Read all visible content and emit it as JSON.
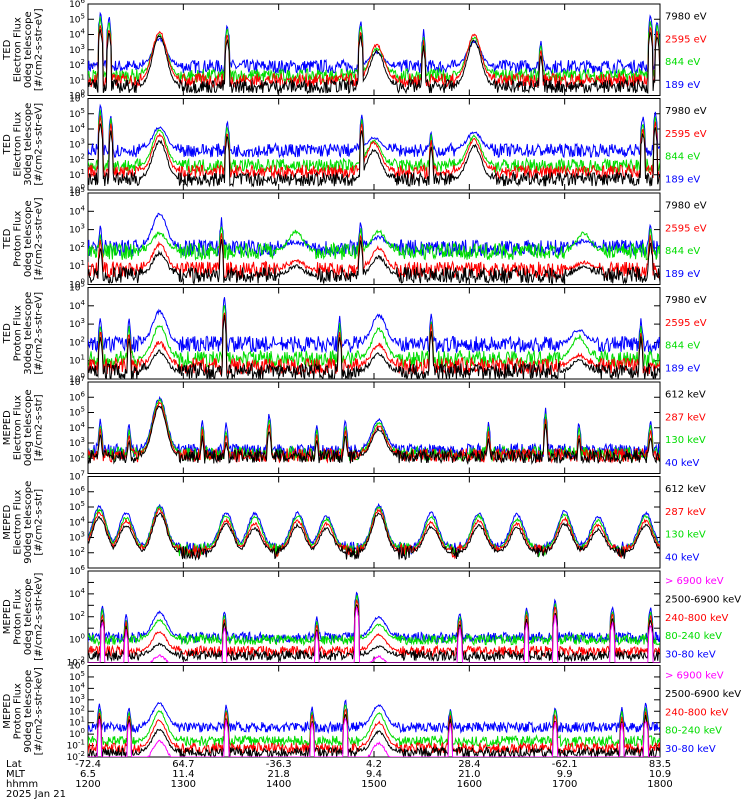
{
  "chart_data": [
    {
      "type": "line",
      "ylabel": [
        "TED",
        "Electron Flux",
        "0deg telescope",
        "[#/cm2-s-str-eV]"
      ],
      "ylim_exp": [
        0,
        6
      ],
      "ytick_exps": [
        0,
        1,
        2,
        3,
        4,
        5,
        6
      ],
      "legend": [
        {
          "label": "7980 eV",
          "color": "#000000"
        },
        {
          "label": "2595 eV",
          "color": "#ff0000"
        },
        {
          "label": "844 eV",
          "color": "#00dd00"
        },
        {
          "label": "189 eV",
          "color": "#0000ff"
        }
      ],
      "bg_levels": [
        0.6,
        1.0,
        1.3,
        1.9
      ],
      "bumps": [
        {
          "x": 1275,
          "peaks": [
            3.9,
            4.2,
            4.0,
            3.7
          ]
        },
        {
          "x": 1503,
          "peaks": [
            2.9,
            3.3,
            3.1,
            2.8
          ]
        },
        {
          "x": 1605,
          "peaks": [
            3.6,
            4.0,
            3.8,
            3.5
          ]
        }
      ],
      "spikes": [
        [
          1213,
          5.5
        ],
        [
          1222,
          5.2
        ],
        [
          1346,
          4.8
        ],
        [
          1486,
          5.0
        ],
        [
          1552,
          4.2
        ],
        [
          1675,
          3.7
        ],
        [
          1790,
          5.3
        ],
        [
          1797,
          5.0
        ]
      ]
    },
    {
      "type": "line",
      "ylabel": [
        "TED",
        "Electron Flux",
        "30deg telescope",
        "[#/cm2-s-str-eV]"
      ],
      "ylim_exp": [
        0,
        6
      ],
      "ytick_exps": [
        0,
        1,
        2,
        3,
        4,
        5,
        6
      ],
      "legend": [
        {
          "label": "7980 eV",
          "color": "#000000"
        },
        {
          "label": "2595 eV",
          "color": "#ff0000"
        },
        {
          "label": "844 eV",
          "color": "#00dd00"
        },
        {
          "label": "189 eV",
          "color": "#0000ff"
        }
      ],
      "bg_levels": [
        0.7,
        1.2,
        1.6,
        2.6
      ],
      "bumps": [
        {
          "x": 1275,
          "peaks": [
            3.2,
            3.6,
            3.9,
            4.1
          ]
        },
        {
          "x": 1500,
          "peaks": [
            2.6,
            3.1,
            3.2,
            3.4
          ]
        },
        {
          "x": 1605,
          "peaks": [
            2.9,
            3.3,
            3.5,
            3.8
          ]
        }
      ],
      "spikes": [
        [
          1213,
          5.6
        ],
        [
          1224,
          5.0
        ],
        [
          1346,
          4.6
        ],
        [
          1487,
          5.0
        ],
        [
          1560,
          3.9
        ],
        [
          1782,
          4.9
        ],
        [
          1795,
          5.2
        ]
      ]
    },
    {
      "type": "line",
      "ylabel": [
        "TED",
        "Proton Flux",
        "0deg telescope",
        "[#/cm2-s-str-eV]"
      ],
      "ylim_exp": [
        0,
        5
      ],
      "ytick_exps": [
        0,
        1,
        2,
        3,
        4,
        5
      ],
      "legend": [
        {
          "label": "7980 eV",
          "color": "#000000"
        },
        {
          "label": "2595 eV",
          "color": "#ff0000"
        },
        {
          "label": "844 eV",
          "color": "#00dd00"
        },
        {
          "label": "189 eV",
          "color": "#0000ff"
        }
      ],
      "bg_levels": [
        0.5,
        0.8,
        1.8,
        2.0
      ],
      "bumps": [
        {
          "x": 1275,
          "peaks": [
            1.7,
            2.2,
            2.8,
            3.9
          ]
        },
        {
          "x": 1418,
          "peaks": [
            1.0,
            1.3,
            2.9,
            2.3
          ]
        },
        {
          "x": 1505,
          "peaks": [
            1.5,
            2.0,
            2.9,
            2.6
          ]
        },
        {
          "x": 1720,
          "peaks": [
            1.0,
            1.2,
            2.8,
            2.4
          ]
        }
      ],
      "spikes": [
        [
          1213,
          3.2
        ],
        [
          1340,
          3.6
        ],
        [
          1486,
          3.5
        ],
        [
          1790,
          3.5
        ]
      ]
    },
    {
      "type": "line",
      "ylabel": [
        "TED",
        "Proton Flux",
        "30deg telescope",
        "[#/cm2-s-str-eV]"
      ],
      "ylim_exp": [
        0,
        5
      ],
      "ytick_exps": [
        0,
        1,
        2,
        3,
        4,
        5
      ],
      "legend": [
        {
          "label": "7980 eV",
          "color": "#000000"
        },
        {
          "label": "2595 eV",
          "color": "#ff0000"
        },
        {
          "label": "844 eV",
          "color": "#00dd00"
        },
        {
          "label": "189 eV",
          "color": "#0000ff"
        }
      ],
      "bg_levels": [
        0.4,
        0.7,
        1.1,
        1.9
      ],
      "bumps": [
        {
          "x": 1275,
          "peaks": [
            1.5,
            2.0,
            2.9,
            3.7
          ]
        },
        {
          "x": 1505,
          "peaks": [
            1.4,
            1.9,
            2.7,
            3.5
          ]
        },
        {
          "x": 1715,
          "peaks": [
            1.0,
            1.3,
            2.3,
            2.7
          ]
        }
      ],
      "spikes": [
        [
          1213,
          3.4
        ],
        [
          1243,
          3.3
        ],
        [
          1343,
          4.5
        ],
        [
          1464,
          3.4
        ],
        [
          1560,
          3.6
        ],
        [
          1780,
          3.3
        ]
      ]
    },
    {
      "type": "line",
      "ylabel": [
        "MEPED",
        "Electron Flux",
        "0deg telescope",
        "[#/cm2-s-str]"
      ],
      "ylim_exp": [
        1,
        7
      ],
      "ytick_exps": [
        2,
        3,
        4,
        5,
        6,
        7
      ],
      "legend": [
        {
          "label": "612 keV",
          "color": "#000000"
        },
        {
          "label": "287 keV",
          "color": "#ff0000"
        },
        {
          "label": "130 keV",
          "color": "#00dd00"
        },
        {
          "label": "40 keV",
          "color": "#0000ff"
        }
      ],
      "bg_levels": [
        2.1,
        2.2,
        2.3,
        2.5
      ],
      "bumps": [
        {
          "x": 1275,
          "peaks": [
            5.4,
            5.6,
            5.8,
            5.9
          ]
        },
        {
          "x": 1505,
          "peaks": [
            3.9,
            4.1,
            4.3,
            4.5
          ]
        }
      ],
      "spikes": [
        [
          1213,
          4.6
        ],
        [
          1243,
          4.3
        ],
        [
          1320,
          4.5
        ],
        [
          1345,
          4.3
        ],
        [
          1390,
          5.0
        ],
        [
          1440,
          4.3
        ],
        [
          1470,
          4.6
        ],
        [
          1620,
          4.4
        ],
        [
          1680,
          5.2
        ],
        [
          1715,
          4.4
        ],
        [
          1790,
          4.6
        ]
      ]
    },
    {
      "type": "line",
      "ylabel": [
        "MEPED",
        "Electron Flux",
        "90deg telescope",
        "[#/cm2-s-str]"
      ],
      "ylim_exp": [
        1,
        7
      ],
      "ytick_exps": [
        2,
        3,
        4,
        5,
        6,
        7
      ],
      "legend": [
        {
          "label": "612 keV",
          "color": "#000000"
        },
        {
          "label": "287 keV",
          "color": "#ff0000"
        },
        {
          "label": "130 keV",
          "color": "#00dd00"
        },
        {
          "label": "40 keV",
          "color": "#0000ff"
        }
      ],
      "bg_levels": [
        2.0,
        2.1,
        2.2,
        2.3
      ],
      "bumps": [
        {
          "x": 1212,
          "peaks": [
            4.3,
            4.6,
            4.8,
            5.0
          ]
        },
        {
          "x": 1240,
          "peaks": [
            3.8,
            4.1,
            4.3,
            4.6
          ]
        },
        {
          "x": 1275,
          "peaks": [
            4.6,
            4.8,
            5.0,
            5.1
          ]
        },
        {
          "x": 1345,
          "peaks": [
            3.9,
            4.1,
            4.4,
            4.6
          ]
        },
        {
          "x": 1375,
          "peaks": [
            3.6,
            3.9,
            4.3,
            4.6
          ]
        },
        {
          "x": 1420,
          "peaks": [
            3.8,
            4.1,
            4.4,
            4.6
          ]
        },
        {
          "x": 1450,
          "peaks": [
            3.6,
            3.9,
            4.2,
            4.4
          ]
        },
        {
          "x": 1505,
          "peaks": [
            4.6,
            4.8,
            5.0,
            5.1
          ]
        },
        {
          "x": 1560,
          "peaks": [
            3.7,
            4.0,
            4.3,
            4.6
          ]
        },
        {
          "x": 1610,
          "peaks": [
            3.8,
            4.1,
            4.4,
            4.6
          ]
        },
        {
          "x": 1650,
          "peaks": [
            3.6,
            3.9,
            4.2,
            4.5
          ]
        },
        {
          "x": 1700,
          "peaks": [
            3.9,
            4.2,
            4.5,
            4.7
          ]
        },
        {
          "x": 1735,
          "peaks": [
            3.5,
            3.8,
            4.1,
            4.4
          ]
        },
        {
          "x": 1785,
          "peaks": [
            3.8,
            4.1,
            4.4,
            4.6
          ]
        }
      ],
      "spikes": []
    },
    {
      "type": "line",
      "ylabel": [
        "MEPED",
        "Proton Flux",
        "0deg telescope",
        "[#/cm2-s-str-keV]"
      ],
      "ylim_exp": [
        -2,
        6
      ],
      "ytick_exps": [
        -2,
        0,
        2,
        4,
        6
      ],
      "legend": [
        {
          "label": "> 6900 keV",
          "color": "#ff00ff"
        },
        {
          "label": "2500-6900 keV",
          "color": "#000000"
        },
        {
          "label": "240-800 keV",
          "color": "#ff0000"
        },
        {
          "label": "80-240 keV",
          "color": "#00dd00"
        },
        {
          "label": "30-80 keV",
          "color": "#0000ff"
        }
      ],
      "bg_levels": [
        -2.5,
        -1.4,
        -1.0,
        0.0,
        0.2
      ],
      "bumps": [
        {
          "x": 1275,
          "peaks": [
            -1.4,
            -0.4,
            0.7,
            1.7,
            2.4
          ]
        },
        {
          "x": 1505,
          "peaks": [
            -1.5,
            -0.6,
            0.4,
            1.3,
            2.0
          ]
        }
      ],
      "spikes": [
        [
          1215,
          3.0
        ],
        [
          1240,
          2.2
        ],
        [
          1343,
          2.6
        ],
        [
          1440,
          2.0
        ],
        [
          1482,
          4.3
        ],
        [
          1590,
          2.5
        ],
        [
          1660,
          2.9
        ],
        [
          1690,
          3.6
        ],
        [
          1750,
          3.0
        ],
        [
          1790,
          2.9
        ]
      ]
    },
    {
      "type": "line",
      "ylabel": [
        "MEPED",
        "Proton Flux",
        "90deg telescope",
        "[#/cm2-s-str-keV]"
      ],
      "ylim_exp": [
        -2,
        6
      ],
      "ytick_exps": [
        -2,
        -1,
        0,
        1,
        2,
        3,
        4,
        5,
        6
      ],
      "legend": [
        {
          "label": "> 6900 keV",
          "color": "#ff00ff"
        },
        {
          "label": "2500-6900 keV",
          "color": "#000000"
        },
        {
          "label": "240-800 keV",
          "color": "#ff0000"
        },
        {
          "label": "80-240 keV",
          "color": "#00dd00"
        },
        {
          "label": "30-80 keV",
          "color": "#0000ff"
        }
      ],
      "bg_levels": [
        -2.5,
        -1.6,
        -1.2,
        -0.6,
        0.6
      ],
      "bumps": [
        {
          "x": 1275,
          "peaks": [
            -0.6,
            0.4,
            1.2,
            2.0,
            2.7
          ]
        },
        {
          "x": 1505,
          "peaks": [
            -0.8,
            0.2,
            1.0,
            1.8,
            2.5
          ]
        }
      ],
      "spikes": [
        [
          1212,
          2.6
        ],
        [
          1243,
          2.4
        ],
        [
          1345,
          2.6
        ],
        [
          1435,
          2.4
        ],
        [
          1470,
          3.0
        ],
        [
          1580,
          2.3
        ],
        [
          1690,
          2.5
        ],
        [
          1760,
          2.3
        ],
        [
          1785,
          2.7
        ]
      ]
    }
  ],
  "x_axis": {
    "range": [
      1200,
      1800
    ],
    "ticks": [
      1200,
      1300,
      1400,
      1500,
      1600,
      1700,
      1800
    ],
    "row_labels": [
      "Lat",
      "MLT",
      "hhmm"
    ],
    "lat": [
      "-72.4",
      "64.7",
      "-36.3",
      "4.2",
      "28.4",
      "-62.1",
      "83.5"
    ],
    "mlt": [
      "6.5",
      "11.4",
      "21.8",
      "9.4",
      "21.0",
      "9.9",
      "10.9"
    ],
    "hhmm": [
      "1200",
      "1300",
      "1400",
      "1500",
      "1600",
      "1700",
      "1800"
    ],
    "date": "2025 Jan 21"
  }
}
